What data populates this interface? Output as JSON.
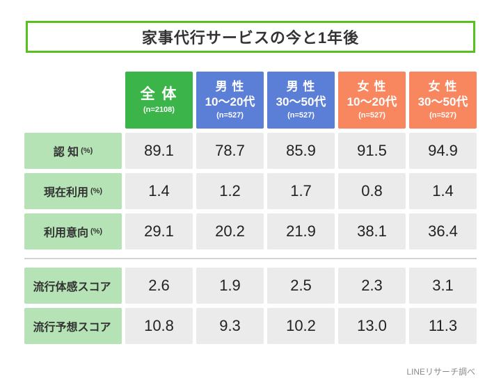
{
  "title": "家事代行サービスの今と1年後",
  "footer": "LINEリサーチ調べ",
  "colors": {
    "title_border": "#57c21d",
    "overall_header": "#3bb54a",
    "male_header": "#5b7ed7",
    "female_header": "#f8875f",
    "row_label_bg": "#b5e3b5",
    "cell_bg": "#ebebeb"
  },
  "chart_data": {
    "type": "table",
    "title": "家事代行サービスの今と1年後",
    "columns": [
      {
        "label": "全 体",
        "sub": "(n=2108)",
        "group": "overall"
      },
      {
        "label": "男 性",
        "label2": "10〜20代",
        "sub": "(n=527)",
        "group": "male"
      },
      {
        "label": "男 性",
        "label2": "30〜50代",
        "sub": "(n=527)",
        "group": "male"
      },
      {
        "label": "女 性",
        "label2": "10〜20代",
        "sub": "(n=527)",
        "group": "female"
      },
      {
        "label": "女 性",
        "label2": "30〜50代",
        "sub": "(n=527)",
        "group": "female"
      }
    ],
    "rows": [
      {
        "label": "認 知",
        "unit": "(%)",
        "values": [
          "89.1",
          "78.7",
          "85.9",
          "91.5",
          "94.9"
        ]
      },
      {
        "label": "現在利用",
        "unit": "(%)",
        "values": [
          "1.4",
          "1.2",
          "1.7",
          "0.8",
          "1.4"
        ]
      },
      {
        "label": "利用意向",
        "unit": "(%)",
        "values": [
          "29.1",
          "20.2",
          "21.9",
          "38.1",
          "36.4"
        ]
      },
      {
        "label": "流行体感スコア",
        "unit": "",
        "values": [
          "2.6",
          "1.9",
          "2.5",
          "2.3",
          "3.1"
        ]
      },
      {
        "label": "流行予想スコア",
        "unit": "",
        "values": [
          "10.8",
          "9.3",
          "10.2",
          "13.0",
          "11.3"
        ]
      }
    ]
  }
}
